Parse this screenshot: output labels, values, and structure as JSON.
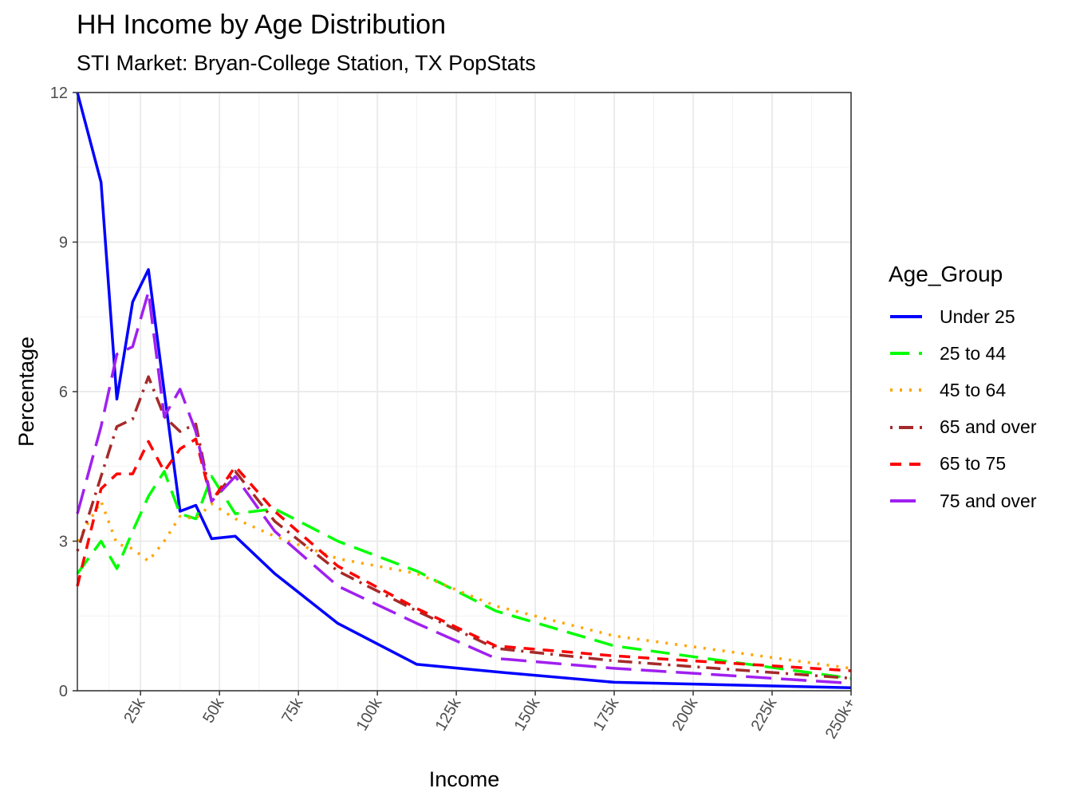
{
  "chart_data": {
    "type": "line",
    "title": "HH Income by Age Distribution",
    "subtitle": "STI Market: Bryan-College Station, TX PopStats",
    "xlabel": "Income",
    "ylabel": "Percentage",
    "legend_title": "Age_Group",
    "legend_position": "right",
    "grid": true,
    "xlim": [
      5,
      250
    ],
    "ylim": [
      0,
      12
    ],
    "x_ticks": [
      {
        "value": 25,
        "label": "25k"
      },
      {
        "value": 50,
        "label": "50k"
      },
      {
        "value": 75,
        "label": "75k"
      },
      {
        "value": 100,
        "label": "100k"
      },
      {
        "value": 125,
        "label": "125k"
      },
      {
        "value": 150,
        "label": "150k"
      },
      {
        "value": 175,
        "label": "175k"
      },
      {
        "value": 200,
        "label": "200k"
      },
      {
        "value": 225,
        "label": "225k"
      },
      {
        "value": 250,
        "label": "250k+"
      }
    ],
    "y_ticks": [
      {
        "value": 0,
        "label": "0"
      },
      {
        "value": 3,
        "label": "3"
      },
      {
        "value": 6,
        "label": "6"
      },
      {
        "value": 9,
        "label": "9"
      },
      {
        "value": 12,
        "label": "12"
      }
    ],
    "x": [
      5,
      12.5,
      17.5,
      22.5,
      27.5,
      32.5,
      37.5,
      42.5,
      47.5,
      55,
      67.5,
      87.5,
      112.5,
      137.5,
      175,
      250
    ],
    "series": [
      {
        "name": "Under 25",
        "color": "#0000ff",
        "dash": "solid",
        "values": [
          12.0,
          10.2,
          5.85,
          7.8,
          8.45,
          6.0,
          3.6,
          3.72,
          3.05,
          3.1,
          2.35,
          1.35,
          0.53,
          0.38,
          0.17,
          0.06
        ]
      },
      {
        "name": "25 to 44",
        "color": "#00ff00",
        "dash": "dashed",
        "values": [
          2.35,
          3.0,
          2.45,
          3.2,
          3.9,
          4.4,
          3.55,
          3.45,
          4.3,
          3.55,
          3.65,
          3.0,
          2.4,
          1.6,
          0.9,
          0.25
        ]
      },
      {
        "name": "45 to 64",
        "color": "#ffa500",
        "dash": "dotted",
        "values": [
          3.0,
          3.8,
          2.95,
          2.85,
          2.6,
          3.0,
          3.5,
          3.45,
          3.75,
          3.45,
          3.1,
          2.65,
          2.35,
          1.7,
          1.1,
          0.45
        ]
      },
      {
        "name": "65 and over",
        "color": "#a52a2a",
        "dash": "dotdash",
        "values": [
          2.8,
          4.3,
          5.3,
          5.45,
          6.3,
          5.5,
          5.2,
          5.35,
          3.8,
          4.4,
          3.4,
          2.4,
          1.6,
          0.85,
          0.6,
          0.25
        ]
      },
      {
        "name": "65 to 75",
        "color": "#ff0000",
        "dash": "shortdash",
        "values": [
          2.1,
          4.05,
          4.35,
          4.35,
          5.0,
          4.4,
          4.85,
          5.05,
          3.8,
          4.5,
          3.6,
          2.5,
          1.65,
          0.9,
          0.7,
          0.4
        ]
      },
      {
        "name": "75 and over",
        "color": "#a020f0",
        "dash": "longdash",
        "values": [
          3.55,
          5.3,
          6.75,
          6.9,
          8.0,
          5.5,
          6.05,
          5.2,
          3.8,
          4.3,
          3.2,
          2.1,
          1.35,
          0.65,
          0.45,
          0.15
        ]
      }
    ]
  }
}
